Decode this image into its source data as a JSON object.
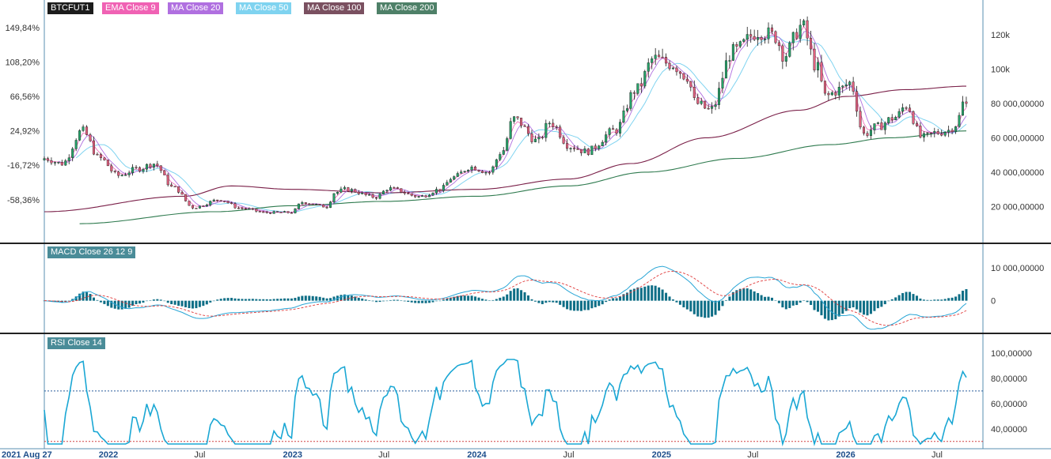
{
  "legend": {
    "symbol": "BTCFUT1",
    "ema9": "EMA  Close  9",
    "ma20": "MA  Close  20",
    "ma50": "MA  Close  50",
    "ma100": "MA  Close  100",
    "ma200": "MA  Close  200",
    "macd": "MACD  Close  26  12  9",
    "rsi": "RSI  Close  14"
  },
  "colors": {
    "up": "#26a269",
    "down": "#e0607e",
    "ema9": "#f062b4",
    "ma20": "#b070e0",
    "ma50": "#7fd3f0",
    "ma100": "#7a1f48",
    "ma200": "#2e7a4e",
    "macd_line": "#2aa6d6",
    "signal_line": "#e03a3a",
    "histogram": "#0e6e86",
    "rsi_line": "#1aa7d4",
    "rsi_upper": "#2a5e9c",
    "rsi_lower": "#d04040"
  },
  "chart_data": [
    {
      "type": "candlestick",
      "panel": "price",
      "x_start": "2021-08-27",
      "x_end": "2026-09-30",
      "left_axis_ticks": [
        "149,84%",
        "108,20%",
        "66,56%",
        "24,92%",
        "-16,72%",
        "-58,36%"
      ],
      "right_axis_ticks": [
        "120k",
        "100k",
        "80 000,00000",
        "60 000,00000",
        "40 000,00000",
        "20 000,00000"
      ],
      "right_axis_values": [
        120000,
        100000,
        80000,
        60000,
        40000,
        20000
      ],
      "ylim": [
        0,
        130000
      ],
      "close_anchors": [
        [
          "2021-08-27",
          48000
        ],
        [
          "2021-10-01",
          45000
        ],
        [
          "2021-11-10",
          64000
        ],
        [
          "2021-12-15",
          48000
        ],
        [
          "2022-01-20",
          38000
        ],
        [
          "2022-03-01",
          42000
        ],
        [
          "2022-04-01",
          45000
        ],
        [
          "2022-05-10",
          31000
        ],
        [
          "2022-06-18",
          19500
        ],
        [
          "2022-08-10",
          24000
        ],
        [
          "2022-09-20",
          19000
        ],
        [
          "2022-11-10",
          16500
        ],
        [
          "2022-12-30",
          16600
        ],
        [
          "2023-01-20",
          22500
        ],
        [
          "2023-03-10",
          20000
        ],
        [
          "2023-03-25",
          28000
        ],
        [
          "2023-04-15",
          30000
        ],
        [
          "2023-06-15",
          25500
        ],
        [
          "2023-07-10",
          30500
        ],
        [
          "2023-09-10",
          25800
        ],
        [
          "2023-10-20",
          30000
        ],
        [
          "2023-11-15",
          37000
        ],
        [
          "2023-12-20",
          43000
        ],
        [
          "2024-01-25",
          40000
        ],
        [
          "2024-02-20",
          52000
        ],
        [
          "2024-03-14",
          71000
        ],
        [
          "2024-05-01",
          58000
        ],
        [
          "2024-05-25",
          69000
        ],
        [
          "2024-07-05",
          55000
        ],
        [
          "2024-08-05",
          52000
        ],
        [
          "2024-09-30",
          64000
        ],
        [
          "2024-11-12",
          88000
        ],
        [
          "2024-12-17",
          106000
        ],
        [
          "2025-01-20",
          103000
        ],
        [
          "2025-02-20",
          96000
        ],
        [
          "2025-03-10",
          80000
        ],
        [
          "2025-04-08",
          76000
        ],
        [
          "2025-05-22",
          110000
        ],
        [
          "2025-07-14",
          122000
        ],
        [
          "2025-08-14",
          119000
        ],
        [
          "2025-09-01",
          108000
        ],
        [
          "2025-10-06",
          125000
        ],
        [
          "2025-11-05",
          101000
        ],
        [
          "2025-11-22",
          84000
        ],
        [
          "2025-12-20",
          88000
        ],
        [
          "2026-01-10",
          92000
        ],
        [
          "2026-02-06",
          62000
        ],
        [
          "2026-03-01",
          66000
        ],
        [
          "2026-04-10",
          72000
        ],
        [
          "2026-05-01",
          79000
        ],
        [
          "2026-06-01",
          60000
        ],
        [
          "2026-07-01",
          63000
        ],
        [
          "2026-07-20",
          64000
        ],
        [
          "2026-08-10",
          68000
        ],
        [
          "2026-08-20",
          80000
        ],
        [
          "2026-08-30",
          79000
        ]
      ],
      "ma100_anchors": [
        [
          "2021-08-27",
          17000
        ],
        [
          "2022-06-01",
          26000
        ],
        [
          "2022-09-01",
          32000
        ],
        [
          "2023-01-01",
          30000
        ],
        [
          "2023-07-01",
          28000
        ],
        [
          "2024-01-01",
          30000
        ],
        [
          "2024-07-01",
          36000
        ],
        [
          "2024-11-01",
          45000
        ],
        [
          "2025-04-01",
          60000
        ],
        [
          "2025-10-01",
          76000
        ],
        [
          "2026-01-01",
          84000
        ],
        [
          "2026-05-01",
          88000
        ],
        [
          "2026-08-30",
          90000
        ]
      ],
      "ma200_anchors": [
        [
          "2021-10-30",
          10000
        ],
        [
          "2022-08-01",
          17000
        ],
        [
          "2023-01-01",
          20500
        ],
        [
          "2023-07-01",
          23000
        ],
        [
          "2024-01-01",
          26000
        ],
        [
          "2024-07-01",
          32000
        ],
        [
          "2024-12-01",
          40000
        ],
        [
          "2025-06-01",
          48000
        ],
        [
          "2025-12-01",
          56000
        ],
        [
          "2026-04-01",
          60000
        ],
        [
          "2026-08-30",
          64000
        ]
      ]
    },
    {
      "type": "bar+line",
      "panel": "macd",
      "right_axis_ticks": [
        "10 000,00000",
        "0"
      ],
      "right_axis_values": [
        10000,
        0
      ],
      "ylim": [
        -9500,
        11500
      ]
    },
    {
      "type": "line",
      "panel": "rsi",
      "right_axis_ticks": [
        "100,00000",
        "80,00000",
        "60,00000",
        "40,00000"
      ],
      "right_axis_values": [
        100,
        80,
        60,
        40
      ],
      "ylim": [
        28,
        100
      ],
      "upper_band": 70,
      "lower_band": 30,
      "x_ticks": [
        "2021 Aug 27",
        "2022",
        "Jul",
        "2023",
        "Jul",
        "2024",
        "Jul",
        "2025",
        "Jul",
        "2026",
        "Jul"
      ],
      "x_tick_dates": [
        "2021-08-27",
        "2022-01-01",
        "2022-07-01",
        "2023-01-01",
        "2023-07-01",
        "2024-01-01",
        "2024-07-01",
        "2025-01-01",
        "2025-07-01",
        "2026-01-01",
        "2026-07-01"
      ],
      "x_tick_bold": [
        true,
        true,
        false,
        true,
        false,
        true,
        false,
        true,
        false,
        true,
        false
      ]
    }
  ]
}
